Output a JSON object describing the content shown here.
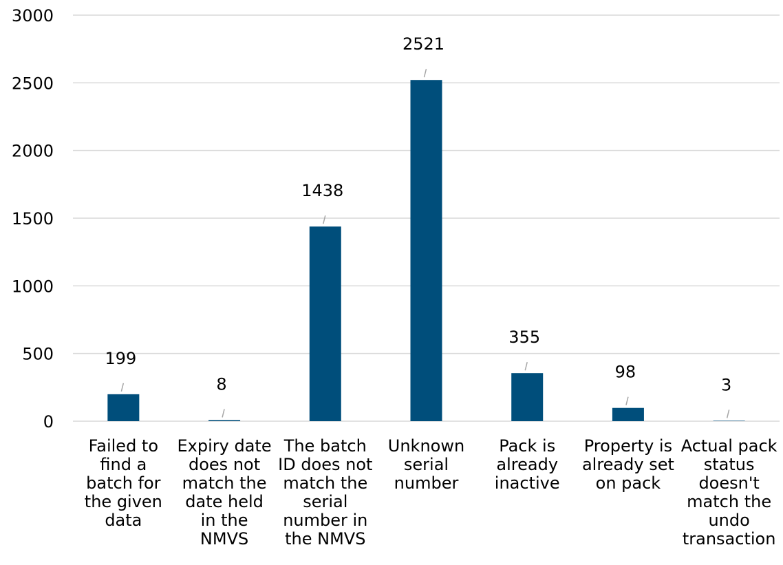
{
  "chart_data": {
    "type": "bar",
    "categories": [
      [
        "Failed to",
        "find a",
        "batch for",
        "the given",
        "data"
      ],
      [
        "Expiry date",
        "does not",
        "match the",
        "date held",
        "in the",
        "NMVS"
      ],
      [
        "The batch",
        "ID does not",
        "match the",
        "serial",
        "number in",
        "the NMVS"
      ],
      [
        "Unknown",
        "serial",
        "number"
      ],
      [
        "Pack is",
        "already",
        "inactive"
      ],
      [
        "Property is",
        "already set",
        "on pack"
      ],
      [
        "Actual pack",
        "status",
        "doesn't",
        "match the",
        "undo",
        "transaction"
      ]
    ],
    "values": [
      199,
      8,
      1438,
      2521,
      355,
      98,
      3
    ],
    "ylim": [
      0,
      3000
    ],
    "yticks": [
      0,
      500,
      1000,
      1500,
      2000,
      2500,
      3000
    ],
    "grid": true,
    "bar_color": "#004e7b",
    "grid_color": "#d9d9d9",
    "leader_color": "#a6a6a6"
  }
}
